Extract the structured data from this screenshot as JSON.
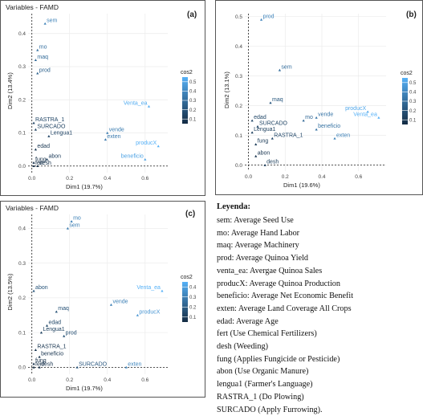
{
  "panels": [
    {
      "letter": "(a)",
      "title": "Variables - FAMD",
      "xlabel": "Dim1 (19.7%)",
      "ylabel": "Dim2 (13.4%)",
      "legend_title": "cos2",
      "chart_data": {
        "type": "scatter",
        "xlim": [
          -0.02,
          0.72
        ],
        "ylim": [
          -0.02,
          0.46
        ],
        "xticks": [
          0.0,
          0.2,
          0.4,
          0.6
        ],
        "yticks": [
          0.0,
          0.1,
          0.2,
          0.3,
          0.4
        ],
        "tick_labels_x": [
          "0.0",
          "0.2",
          "0.4",
          "0.6"
        ],
        "tick_labels_y": [
          "0.0",
          "0.1",
          "0.2",
          "0.3",
          "0.4"
        ],
        "colorbar_ticks": [
          0.1,
          0.2,
          0.3,
          0.4,
          0.5
        ],
        "colorbar_labels": [
          "0.1",
          "0.2",
          "0.3",
          "0.4",
          "0.5"
        ],
        "points": [
          {
            "label": "sem",
            "x": 0.07,
            "y": 0.43
          },
          {
            "label": "mo",
            "x": 0.03,
            "y": 0.35
          },
          {
            "label": "maq",
            "x": 0.02,
            "y": 0.32
          },
          {
            "label": "prod",
            "x": 0.03,
            "y": 0.28
          },
          {
            "label": "Venta_ea",
            "x": 0.62,
            "y": 0.18
          },
          {
            "label": "RASTRA_1",
            "x": 0.01,
            "y": 0.13
          },
          {
            "label": "SURCADO",
            "x": 0.02,
            "y": 0.11
          },
          {
            "label": "Lengua1",
            "x": 0.09,
            "y": 0.09
          },
          {
            "label": "vende",
            "x": 0.4,
            "y": 0.1
          },
          {
            "label": "exten",
            "x": 0.39,
            "y": 0.08
          },
          {
            "label": "producX",
            "x": 0.67,
            "y": 0.06
          },
          {
            "label": "edad",
            "x": 0.02,
            "y": 0.05
          },
          {
            "label": "abon",
            "x": 0.08,
            "y": 0.02
          },
          {
            "label": "fung",
            "x": 0.01,
            "y": 0.01
          },
          {
            "label": "beneficio",
            "x": 0.6,
            "y": 0.02
          },
          {
            "label": "fert",
            "x": 0.01,
            "y": 0.0
          },
          {
            "label": "desh",
            "x": 0.03,
            "y": 0.0
          }
        ]
      }
    },
    {
      "letter": "(b)",
      "title": "",
      "xlabel": "Dim1 (19.6%)",
      "ylabel": "Dim2 (13.1%)",
      "legend_title": "cos2",
      "chart_data": {
        "type": "scatter",
        "xlim": [
          -0.02,
          0.75
        ],
        "ylim": [
          -0.02,
          0.51
        ],
        "xticks": [
          0.0,
          0.2,
          0.4,
          0.6
        ],
        "yticks": [
          0.0,
          0.1,
          0.2,
          0.3,
          0.4,
          0.5
        ],
        "tick_labels_x": [
          "0.0",
          "0.2",
          "0.4",
          "0.6"
        ],
        "tick_labels_y": [
          "0.0",
          "0.1",
          "0.2",
          "0.3",
          "0.4",
          "0.5"
        ],
        "colorbar_ticks": [
          0.1,
          0.2,
          0.3,
          0.4,
          0.5
        ],
        "colorbar_labels": [
          "0.1",
          "0.2",
          "0.3",
          "0.4",
          "0.5"
        ],
        "points": [
          {
            "label": "prod",
            "x": 0.07,
            "y": 0.49
          },
          {
            "label": "sem",
            "x": 0.17,
            "y": 0.32
          },
          {
            "label": "maq",
            "x": 0.12,
            "y": 0.21
          },
          {
            "label": "producX",
            "x": 0.65,
            "y": 0.18
          },
          {
            "label": "Venta_ea",
            "x": 0.71,
            "y": 0.16
          },
          {
            "label": "vende",
            "x": 0.37,
            "y": 0.16
          },
          {
            "label": "mo",
            "x": 0.3,
            "y": 0.15
          },
          {
            "label": "edad",
            "x": 0.02,
            "y": 0.15
          },
          {
            "label": "SURCADO",
            "x": 0.05,
            "y": 0.13
          },
          {
            "label": "beneficio",
            "x": 0.37,
            "y": 0.12
          },
          {
            "label": "Lengua1",
            "x": 0.02,
            "y": 0.11
          },
          {
            "label": "RASTRA_1",
            "x": 0.13,
            "y": 0.09
          },
          {
            "label": "exten",
            "x": 0.47,
            "y": 0.09
          },
          {
            "label": "fung",
            "x": 0.04,
            "y": 0.07
          },
          {
            "label": "abon",
            "x": 0.04,
            "y": 0.03
          },
          {
            "label": "desh",
            "x": 0.09,
            "y": 0.0
          }
        ]
      }
    },
    {
      "letter": "(c)",
      "title": "Variables - FAMD",
      "xlabel": "Dim1 (19.7%)",
      "ylabel": "Dim2 (13.5%)",
      "legend_title": "cos2",
      "chart_data": {
        "type": "scatter",
        "xlim": [
          -0.02,
          0.72
        ],
        "ylim": [
          -0.02,
          0.44
        ],
        "xticks": [
          0.0,
          0.2,
          0.4,
          0.6
        ],
        "yticks": [
          0.0,
          0.1,
          0.2,
          0.3,
          0.4
        ],
        "tick_labels_x": [
          "0.0",
          "0.2",
          "0.4",
          "0.6"
        ],
        "tick_labels_y": [
          "0.0",
          "0.1",
          "0.2",
          "0.3",
          "0.4"
        ],
        "colorbar_ticks": [
          0.1,
          0.2,
          0.3,
          0.4
        ],
        "colorbar_labels": [
          "0.1",
          "0.2",
          "0.3",
          "0.4"
        ],
        "points": [
          {
            "label": "mo",
            "x": 0.21,
            "y": 0.42
          },
          {
            "label": "sem",
            "x": 0.19,
            "y": 0.4
          },
          {
            "label": "abon",
            "x": 0.01,
            "y": 0.22
          },
          {
            "label": "Venta_ea",
            "x": 0.69,
            "y": 0.22
          },
          {
            "label": "vende",
            "x": 0.42,
            "y": 0.18
          },
          {
            "label": "maq",
            "x": 0.13,
            "y": 0.16
          },
          {
            "label": "producX",
            "x": 0.56,
            "y": 0.15
          },
          {
            "label": "edad",
            "x": 0.08,
            "y": 0.12
          },
          {
            "label": "Lengua1",
            "x": 0.05,
            "y": 0.1
          },
          {
            "label": "prod",
            "x": 0.17,
            "y": 0.09
          },
          {
            "label": "RASTRA_1",
            "x": 0.02,
            "y": 0.05
          },
          {
            "label": "beneficio",
            "x": 0.04,
            "y": 0.03
          },
          {
            "label": "fung",
            "x": 0.01,
            "y": 0.01
          },
          {
            "label": "SURCADO",
            "x": 0.24,
            "y": 0.0
          },
          {
            "label": "exten",
            "x": 0.5,
            "y": 0.0
          },
          {
            "label": "fert",
            "x": 0.01,
            "y": 0.0
          },
          {
            "label": "desh",
            "x": 0.04,
            "y": 0.0
          }
        ]
      }
    }
  ],
  "legend": {
    "title": "Leyenda:",
    "items": [
      "sem: Average Seed Use",
      "mo: Average Hand Labor",
      "maq: Average Machinery",
      "prod:  Average Quinoa Yield",
      "venta_ea: Avergae Quinoa Sales",
      "producX: Average Quinoa Production",
      "beneficio: Average Net Economic Benefit",
      "exten: Average Land Coverage All Crops",
      "edad: Average Age",
      "fert (Use Chemical Fertilizers)",
      "desh (Weeding)",
      "fung (Applies Fungicide or Pesticide)",
      "abon (Use Organic Manure)",
      "lengua1 (Farmer's Language)",
      "RASTRA_1 (Do Plowing)",
      "SURCADO (Apply Furrowing)."
    ]
  },
  "colors": {
    "low": "#132b43",
    "high": "#56b1f7",
    "grid": "#ebebeb",
    "axis": "#333333"
  }
}
